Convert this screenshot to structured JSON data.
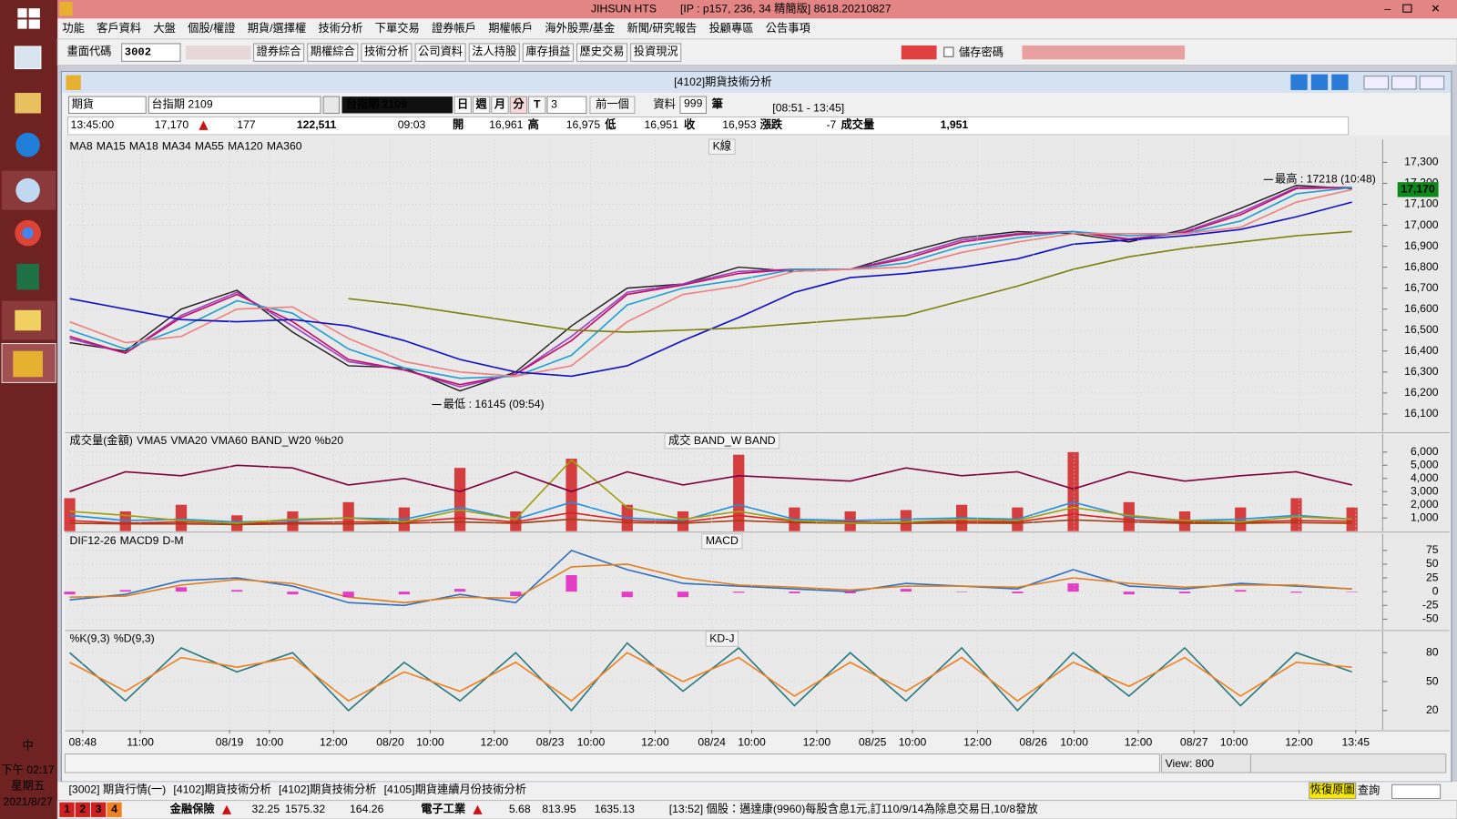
{
  "titlebar": {
    "app": "JIHSUN HTS",
    "info": "[IP : p157, 236, 34 精簡版] 8618.20210827"
  },
  "taskbar": {
    "ime": "中",
    "clock_time": "下午 02:17",
    "clock_day": "星期五",
    "clock_date": "2021/8/27"
  },
  "menu": [
    "功能",
    "客戶資料",
    "大盤",
    "個股/權證",
    "期貨/選擇權",
    "技術分析",
    "下單交易",
    "證券帳戶",
    "期權帳戶",
    "海外股票/基金",
    "新聞/研究報告",
    "投顧專區",
    "公告事項"
  ],
  "toolbar": {
    "code_label": "畫面代碼",
    "code": "3002",
    "buttons": [
      "證券綜合",
      "期權綜合",
      "技術分析",
      "公司資料",
      "法人持股",
      "庫存損益",
      "歷史交易",
      "投資現況"
    ],
    "save_password": "儲存密碼"
  },
  "window": {
    "title": "[4102]期貨技術分析"
  },
  "controls": {
    "market": "期貨",
    "contract": "台指期 2109",
    "display": "台指期 2109",
    "periods": [
      "日",
      "週",
      "月",
      "分",
      "T"
    ],
    "interval": "3",
    "prev": "前一個",
    "data_label": "資料",
    "data_count": "999",
    "unit": "筆",
    "session": "[08:51 - 13:45]"
  },
  "quote": {
    "time": "13:45:00",
    "price": "17,170",
    "change": "177",
    "total_volume": "122,511",
    "bar_time": "09:03",
    "fields": [
      {
        "label": "開",
        "value": "16,961"
      },
      {
        "label": "高",
        "value": "16,975"
      },
      {
        "label": "低",
        "value": "16,951"
      },
      {
        "label": "收",
        "value": "16,953"
      },
      {
        "label": "漲跌",
        "value": "-7"
      },
      {
        "label": "成交量",
        "value": "1,951"
      }
    ]
  },
  "chart_data": [
    {
      "type": "line",
      "label": "K線",
      "grid": true,
      "x": [
        0,
        60,
        120,
        180,
        240,
        300,
        360,
        420,
        480,
        540,
        600,
        660,
        720,
        780,
        840,
        900,
        960,
        1020,
        1080,
        1140,
        1200,
        1260,
        1320,
        1380
      ],
      "xlim": [
        0,
        1385
      ],
      "ylim": [
        16015,
        17410
      ],
      "yticks": [
        {
          "value": 16100,
          "label": "16,100"
        },
        {
          "value": 16200,
          "label": "16,200"
        },
        {
          "value": 16300,
          "label": "16,300"
        },
        {
          "value": 16400,
          "label": "16,400"
        },
        {
          "value": 16500,
          "label": "16,500"
        },
        {
          "value": 16600,
          "label": "16,600"
        },
        {
          "value": 16700,
          "label": "16,700"
        },
        {
          "value": 16800,
          "label": "16,800"
        },
        {
          "value": 16900,
          "label": "16,900"
        },
        {
          "value": 17000,
          "label": "17,000"
        },
        {
          "value": 17100,
          "label": "17,100"
        },
        {
          "value": 17200,
          "label": "17,200"
        },
        {
          "value": 17300,
          "label": "17,300"
        }
      ],
      "series": [
        {
          "name": "MA8",
          "color": "#202020",
          "values": [
            16440,
            16400,
            16600,
            16690,
            16490,
            16330,
            16320,
            16210,
            16300,
            16520,
            16700,
            16720,
            16800,
            16780,
            16790,
            16870,
            16940,
            16970,
            16960,
            16920,
            16980,
            17080,
            17190,
            17175
          ]
        },
        {
          "name": "MA15",
          "color": "#a040c0",
          "values": [
            16460,
            16390,
            16570,
            16680,
            16520,
            16350,
            16310,
            16230,
            16290,
            16470,
            16680,
            16720,
            16780,
            16790,
            16790,
            16850,
            16930,
            16960,
            16970,
            16930,
            16970,
            17060,
            17180,
            17180
          ]
        },
        {
          "name": "MA18",
          "color": "#c0106a",
          "values": [
            16470,
            16390,
            16560,
            16670,
            16540,
            16360,
            16310,
            16240,
            16290,
            16450,
            16670,
            16715,
            16770,
            16790,
            16790,
            16840,
            16920,
            16955,
            16970,
            16935,
            16965,
            17050,
            17175,
            17180
          ]
        },
        {
          "name": "MA34",
          "color": "#20a0d0",
          "values": [
            16500,
            16410,
            16510,
            16640,
            16580,
            16410,
            16320,
            16270,
            16280,
            16380,
            16620,
            16700,
            16740,
            16790,
            16790,
            16820,
            16900,
            16940,
            16970,
            16950,
            16960,
            17020,
            17150,
            17180
          ]
        },
        {
          "name": "MA55",
          "color": "#f08080",
          "values": [
            16540,
            16440,
            16470,
            16600,
            16610,
            16460,
            16350,
            16300,
            16280,
            16330,
            16540,
            16670,
            16710,
            16780,
            16790,
            16800,
            16870,
            16920,
            16960,
            16960,
            16960,
            16990,
            17110,
            17170
          ]
        },
        {
          "name": "MA120",
          "color": "#1010c8",
          "values": [
            16650,
            16600,
            16550,
            16540,
            16550,
            16520,
            16450,
            16360,
            16300,
            16280,
            16330,
            16450,
            16560,
            16680,
            16750,
            16770,
            16800,
            16840,
            16910,
            16930,
            16950,
            16980,
            17040,
            17110
          ]
        },
        {
          "name": "MA360",
          "color": "#808010",
          "values": [
            null,
            null,
            null,
            null,
            null,
            16650,
            16620,
            16580,
            16540,
            16500,
            16490,
            16500,
            16510,
            16530,
            16550,
            16570,
            16640,
            16710,
            16790,
            16850,
            16890,
            16920,
            16950,
            16970
          ]
        }
      ],
      "annotations": [
        {
          "text": "最高 : 17218 (10:48)",
          "x": 1285,
          "y": 17218
        },
        {
          "text": "最低 : 16145 (09:54)",
          "x": 390,
          "y": 16145
        }
      ],
      "last_price": {
        "value": 17170,
        "label": "17,170"
      }
    },
    {
      "type": "bar",
      "label": "成交  BAND_W  BAND",
      "grid": true,
      "x": [
        0,
        60,
        120,
        180,
        240,
        300,
        360,
        420,
        480,
        540,
        600,
        660,
        720,
        780,
        840,
        900,
        960,
        1020,
        1080,
        1140,
        1200,
        1260,
        1320,
        1380
      ],
      "xlim": [
        0,
        1385
      ],
      "ylim": [
        0,
        7400
      ],
      "yticks": [
        {
          "value": 1000,
          "label": "1,000"
        },
        {
          "value": 2000,
          "label": "2,000"
        },
        {
          "value": 3000,
          "label": "3,000"
        },
        {
          "value": 4000,
          "label": "4,000"
        },
        {
          "value": 5000,
          "label": "5,000"
        },
        {
          "value": 6000,
          "label": "6,000"
        }
      ],
      "series": [
        {
          "name": "成交量(金額)",
          "color": "#d02020",
          "mark": "bar",
          "values": [
            2500,
            1500,
            2000,
            1200,
            1500,
            2200,
            1800,
            4800,
            1500,
            5500,
            2000,
            1500,
            5800,
            1800,
            1500,
            1600,
            2000,
            1800,
            6000,
            2200,
            1500,
            1800,
            2500,
            1800
          ]
        },
        {
          "name": "VMA5",
          "color": "#2090e0",
          "values": [
            1200,
            800,
            900,
            700,
            800,
            1000,
            900,
            1800,
            900,
            2200,
            1000,
            800,
            2000,
            900,
            800,
            900,
            1000,
            900,
            2200,
            1100,
            800,
            900,
            1200,
            900
          ]
        },
        {
          "name": "VMA20",
          "color": "#e02020",
          "values": [
            800,
            600,
            700,
            600,
            650,
            700,
            700,
            1000,
            700,
            1400,
            800,
            700,
            1200,
            750,
            700,
            700,
            750,
            700,
            1300,
            850,
            700,
            700,
            800,
            750
          ]
        },
        {
          "name": "VMA60",
          "color": "#a04010",
          "values": [
            600,
            550,
            550,
            500,
            550,
            550,
            600,
            700,
            600,
            900,
            650,
            600,
            800,
            650,
            600,
            600,
            620,
            600,
            850,
            700,
            600,
            600,
            650,
            600
          ]
        },
        {
          "name": "BAND_W20",
          "color": "#a0a010",
          "values": [
            1500,
            1200,
            800,
            600,
            900,
            1000,
            700,
            1600,
            900,
            5400,
            1800,
            900,
            1500,
            800,
            600,
            700,
            900,
            800,
            1800,
            1200,
            800,
            700,
            1100,
            900
          ]
        },
        {
          "name": "%b20",
          "color": "#800040",
          "values": [
            3000,
            4500,
            4200,
            5000,
            4800,
            3500,
            4000,
            3000,
            4500,
            3000,
            4500,
            3500,
            4200,
            4000,
            3800,
            4800,
            4200,
            4500,
            3200,
            4500,
            3800,
            4200,
            4500,
            3500
          ]
        }
      ]
    },
    {
      "type": "line",
      "label": "MACD",
      "grid": true,
      "x": [
        0,
        60,
        120,
        180,
        240,
        300,
        360,
        420,
        480,
        540,
        600,
        660,
        720,
        780,
        840,
        900,
        960,
        1020,
        1080,
        1140,
        1200,
        1260,
        1320,
        1380
      ],
      "xlim": [
        0,
        1385
      ],
      "ylim": [
        -69,
        105
      ],
      "yticks": [
        75,
        50,
        25,
        0,
        -25,
        -50
      ],
      "series": [
        {
          "name": "DIF12-26",
          "color": "#3070c0",
          "values": [
            -15,
            -5,
            20,
            25,
            10,
            -20,
            -25,
            -5,
            -20,
            75,
            40,
            15,
            10,
            5,
            0,
            15,
            10,
            5,
            40,
            10,
            5,
            15,
            10,
            5
          ]
        },
        {
          "name": "MACD9",
          "color": "#e08020",
          "values": [
            -10,
            -8,
            12,
            22,
            15,
            -10,
            -20,
            -10,
            -12,
            45,
            50,
            25,
            12,
            8,
            3,
            10,
            10,
            8,
            25,
            15,
            8,
            12,
            12,
            5
          ]
        },
        {
          "name": "D-M",
          "color": "#e020c0",
          "mark": "bar",
          "values": [
            -5,
            3,
            8,
            3,
            -5,
            -10,
            -5,
            5,
            -8,
            30,
            -10,
            -10,
            -2,
            -3,
            -3,
            5,
            0,
            -3,
            15,
            -5,
            -3,
            3,
            -2,
            0
          ]
        }
      ]
    },
    {
      "type": "line",
      "label": "KD-J",
      "grid": true,
      "x": [
        0,
        60,
        120,
        180,
        240,
        300,
        360,
        420,
        480,
        540,
        600,
        660,
        720,
        780,
        840,
        900,
        960,
        1020,
        1080,
        1140,
        1200,
        1260,
        1320,
        1380
      ],
      "xlim": [
        0,
        1385
      ],
      "ylim": [
        0,
        102
      ],
      "yticks": [
        80,
        50,
        20
      ],
      "xticks": [
        {
          "value": 14,
          "label": "08:48"
        },
        {
          "value": 76,
          "label": "11:00"
        },
        {
          "value": 172,
          "label": "08/19"
        },
        {
          "value": 215,
          "label": "10:00"
        },
        {
          "value": 284,
          "label": "12:00"
        },
        {
          "value": 345,
          "label": "08/20"
        },
        {
          "value": 388,
          "label": "10:00"
        },
        {
          "value": 457,
          "label": "12:00"
        },
        {
          "value": 517,
          "label": "08/23"
        },
        {
          "value": 561,
          "label": "10:00"
        },
        {
          "value": 630,
          "label": "12:00"
        },
        {
          "value": 691,
          "label": "08/24"
        },
        {
          "value": 734,
          "label": "10:00"
        },
        {
          "value": 804,
          "label": "12:00"
        },
        {
          "value": 864,
          "label": "08/25"
        },
        {
          "value": 907,
          "label": "10:00"
        },
        {
          "value": 977,
          "label": "12:00"
        },
        {
          "value": 1037,
          "label": "08/26"
        },
        {
          "value": 1081,
          "label": "10:00"
        },
        {
          "value": 1150,
          "label": "12:00"
        },
        {
          "value": 1210,
          "label": "08/27"
        },
        {
          "value": 1253,
          "label": "10:00"
        },
        {
          "value": 1323,
          "label": "12:00"
        },
        {
          "value": 1384,
          "label": "13:45"
        }
      ],
      "series": [
        {
          "name": "%K(9,3)",
          "color": "#2a7a80",
          "values": [
            80,
            30,
            85,
            60,
            80,
            20,
            70,
            30,
            80,
            20,
            90,
            40,
            85,
            25,
            80,
            30,
            85,
            20,
            80,
            35,
            85,
            25,
            80,
            60
          ]
        },
        {
          "name": "%D(9,3)",
          "color": "#f08020",
          "values": [
            70,
            40,
            75,
            65,
            75,
            30,
            60,
            40,
            70,
            30,
            80,
            50,
            75,
            35,
            70,
            40,
            75,
            30,
            70,
            45,
            75,
            35,
            70,
            65
          ]
        }
      ]
    }
  ],
  "scrollbar": {
    "view": "View: 800"
  },
  "tabs": [
    "[3002] 期貨行情(一)",
    "[4102]期貨技術分析",
    "[4102]期貨技術分析",
    "[4105]期貨連續月份技術分析"
  ],
  "restore": "恢復原圖",
  "query": "查詢",
  "status": {
    "pages": [
      "1",
      "2",
      "3",
      "4"
    ],
    "quotes": [
      {
        "name": "金融保險",
        "change": "32.25",
        "index": "1575.32",
        "volume": "164.26"
      },
      {
        "name": "電子工業",
        "change": "5.68",
        "index": "813.95",
        "volume": "1635.13"
      }
    ],
    "news": "[13:52] 個股：邁達康(9960)每股含息1元,訂110/9/14為除息交易日,10/8發放"
  }
}
